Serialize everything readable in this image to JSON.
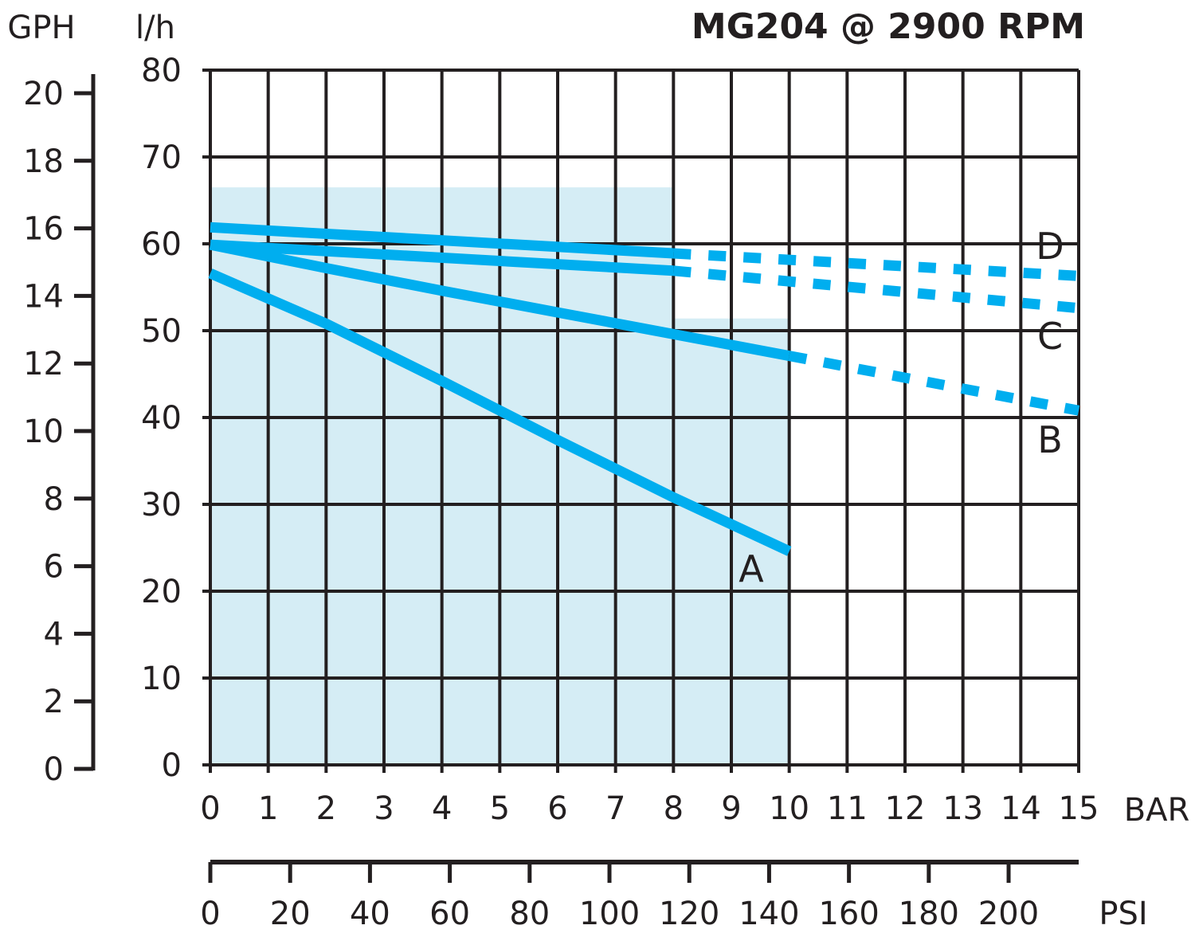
{
  "chart_data": {
    "type": "line",
    "title": "MG204 @ 2900 RPM",
    "xlabel": "BAR",
    "x2label": "PSI",
    "ylabel": "l/h",
    "y2label": "GPH",
    "xlim": [
      0,
      15
    ],
    "ylim": [
      0,
      80
    ],
    "y2lim": [
      0,
      20
    ],
    "grid": true,
    "x_ticks": [
      0,
      1,
      2,
      3,
      4,
      5,
      6,
      7,
      8,
      9,
      10,
      11,
      12,
      13,
      14,
      15
    ],
    "y_ticks": [
      0,
      10,
      20,
      30,
      40,
      50,
      60,
      70,
      80
    ],
    "y2_ticks": [
      0,
      2,
      4,
      6,
      8,
      10,
      12,
      14,
      16,
      18,
      20
    ],
    "x2_ticks": [
      0,
      20,
      40,
      60,
      80,
      100,
      120,
      140,
      160,
      180,
      200
    ],
    "line_color": "#00aeef",
    "shade_color": "#d5edf5",
    "shaded_regions": [
      {
        "x": [
          0,
          8
        ],
        "y_max": 66.5
      },
      {
        "x": [
          8,
          10
        ],
        "y_max": 51.4
      }
    ],
    "series": [
      {
        "name": "A",
        "solid": [
          [
            0,
            56.6
          ],
          [
            2,
            50.8
          ],
          [
            4,
            44.2
          ],
          [
            6,
            37.4
          ],
          [
            8,
            30.8
          ],
          [
            10,
            24.6
          ]
        ],
        "dashed": []
      },
      {
        "name": "B",
        "solid": [
          [
            0,
            59.9
          ],
          [
            2,
            57.2
          ],
          [
            4,
            54.6
          ],
          [
            6,
            52.1
          ],
          [
            8,
            49.6
          ],
          [
            10,
            47.1
          ]
        ],
        "dashed": [
          [
            10,
            47.1
          ],
          [
            15,
            40.8
          ]
        ]
      },
      {
        "name": "C",
        "solid": [
          [
            0,
            59.9
          ],
          [
            8,
            56.9
          ]
        ],
        "dashed": [
          [
            8,
            56.9
          ],
          [
            15,
            52.6
          ]
        ]
      },
      {
        "name": "D",
        "solid": [
          [
            0,
            61.9
          ],
          [
            8,
            58.9
          ]
        ],
        "dashed": [
          [
            8,
            58.9
          ],
          [
            15,
            56.3
          ]
        ]
      }
    ]
  }
}
